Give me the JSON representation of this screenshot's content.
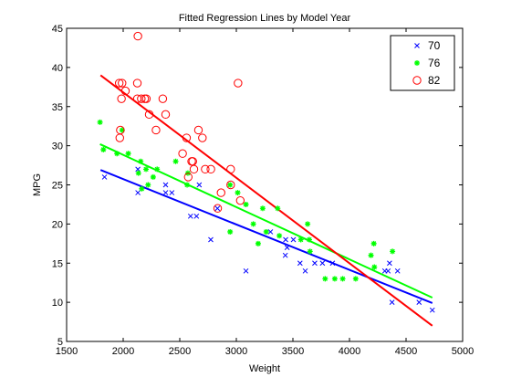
{
  "chart_data": {
    "type": "scatter",
    "title": "Fitted Regression Lines by Model Year",
    "xlabel": "Weight",
    "ylabel": "MPG",
    "xlim": [
      1500,
      5000
    ],
    "ylim": [
      5,
      45
    ],
    "xticks": [
      1500,
      2000,
      2500,
      3000,
      3500,
      4000,
      4500,
      5000
    ],
    "yticks": [
      5,
      10,
      15,
      20,
      25,
      30,
      35,
      40,
      45
    ],
    "grid": false,
    "legend_position": "top-right",
    "series": [
      {
        "name": "70",
        "color": "#0000ff",
        "marker": "x",
        "points": [
          [
            1835,
            26
          ],
          [
            2130,
            27
          ],
          [
            2130,
            24
          ],
          [
            2375,
            25
          ],
          [
            2375,
            24
          ],
          [
            2430,
            24
          ],
          [
            2595,
            21
          ],
          [
            2648,
            21
          ],
          [
            2672,
            25
          ],
          [
            2774,
            18
          ],
          [
            2833,
            22
          ],
          [
            3085,
            14
          ],
          [
            3302,
            19
          ],
          [
            3433,
            16
          ],
          [
            3436,
            18
          ],
          [
            3449,
            17
          ],
          [
            3504,
            18
          ],
          [
            3563,
            15
          ],
          [
            3609,
            14
          ],
          [
            3693,
            15
          ],
          [
            3761,
            15
          ],
          [
            3850,
            15
          ],
          [
            4312,
            14
          ],
          [
            4341,
            14
          ],
          [
            4354,
            15
          ],
          [
            4376,
            10
          ],
          [
            4425,
            14
          ],
          [
            4615,
            10
          ],
          [
            4732,
            9
          ]
        ],
        "fit": [
          [
            1800,
            26.9
          ],
          [
            4732,
            9.9
          ]
        ]
      },
      {
        "name": "76",
        "color": "#00ff00",
        "marker": "*",
        "points": [
          [
            1795,
            33
          ],
          [
            1825,
            29.5
          ],
          [
            1945,
            29
          ],
          [
            1990,
            32
          ],
          [
            2045,
            29
          ],
          [
            2135,
            26.5
          ],
          [
            2155,
            28
          ],
          [
            2164,
            24.5
          ],
          [
            2202,
            27
          ],
          [
            2220,
            25
          ],
          [
            2265,
            26
          ],
          [
            2300,
            27
          ],
          [
            2464,
            28
          ],
          [
            2565,
            25
          ],
          [
            2572,
            26.5
          ],
          [
            2945,
            25
          ],
          [
            2945,
            19
          ],
          [
            3012,
            24
          ],
          [
            3085,
            22.5
          ],
          [
            3150,
            20
          ],
          [
            3193,
            17.5
          ],
          [
            3233,
            22
          ],
          [
            3264,
            19
          ],
          [
            3365,
            22
          ],
          [
            3380,
            18.5
          ],
          [
            3570,
            18
          ],
          [
            3630,
            20
          ],
          [
            3645,
            18
          ],
          [
            3651,
            16.5
          ],
          [
            3785,
            13
          ],
          [
            3870,
            13
          ],
          [
            3940,
            13
          ],
          [
            4055,
            13
          ],
          [
            4190,
            16
          ],
          [
            4215,
            17.5
          ],
          [
            4220,
            14.5
          ],
          [
            4380,
            16.5
          ]
        ],
        "fit": [
          [
            1795,
            30.2
          ],
          [
            4732,
            10.6
          ]
        ]
      },
      {
        "name": "82",
        "color": "#ff0000",
        "marker": "o",
        "points": [
          [
            1965,
            38
          ],
          [
            1970,
            31
          ],
          [
            1975,
            32
          ],
          [
            1985,
            36
          ],
          [
            1990,
            38
          ],
          [
            2020,
            37
          ],
          [
            2125,
            38
          ],
          [
            2130,
            44
          ],
          [
            2125,
            36
          ],
          [
            2160,
            36
          ],
          [
            2190,
            36
          ],
          [
            2205,
            36
          ],
          [
            2230,
            34
          ],
          [
            2290,
            32
          ],
          [
            2350,
            36
          ],
          [
            2375,
            34
          ],
          [
            2525,
            29
          ],
          [
            2560,
            31
          ],
          [
            2575,
            26
          ],
          [
            2605,
            28
          ],
          [
            2615,
            28
          ],
          [
            2625,
            27
          ],
          [
            2665,
            32
          ],
          [
            2700,
            31
          ],
          [
            2725,
            27
          ],
          [
            2775,
            27
          ],
          [
            2835,
            22
          ],
          [
            2865,
            24
          ],
          [
            2950,
            27
          ],
          [
            2950,
            25
          ],
          [
            3015,
            38
          ],
          [
            3035,
            23
          ]
        ],
        "fit": [
          [
            1800,
            39.0
          ],
          [
            4732,
            7.0
          ]
        ]
      }
    ]
  }
}
